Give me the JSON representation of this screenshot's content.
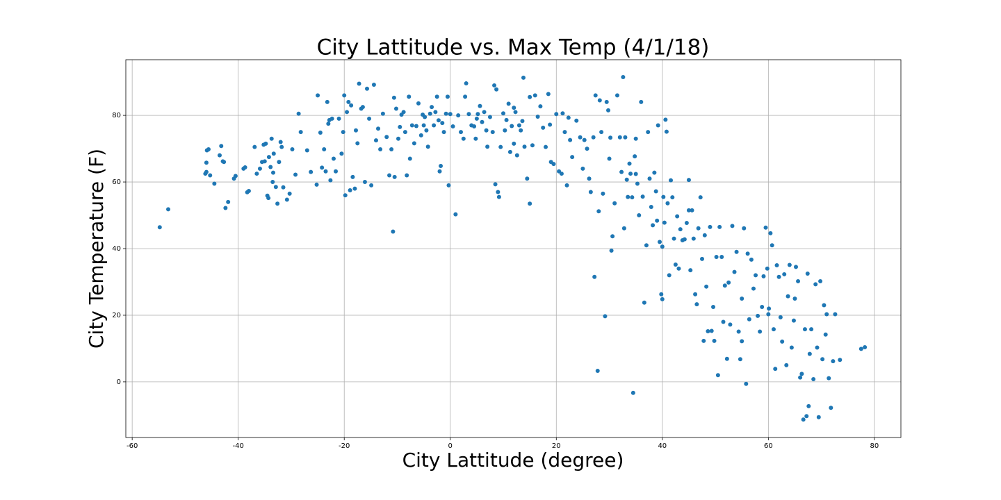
{
  "chart_data": {
    "type": "scatter",
    "title": "City Lattitude vs. Max Temp (4/1/18)",
    "xlabel": "City Lattitude (degree)",
    "ylabel": "City Temperature (F)",
    "color": "#1f77b4",
    "grid": true,
    "xlim": [
      -61.2,
      85
    ],
    "ylim": [
      -16.7,
      96.7
    ],
    "xticks": [
      -60,
      -40,
      -20,
      0,
      20,
      40,
      60,
      80
    ],
    "yticks": [
      0,
      20,
      40,
      60,
      80
    ],
    "x": [
      -54.8,
      -53.2,
      -46.2,
      -46,
      -46,
      -45.9,
      -45.6,
      -45.3,
      -44.5,
      -43.5,
      -43.2,
      -42.9,
      -42.7,
      -42.4,
      -41.9,
      -40.8,
      -40.5,
      -39,
      -38.7,
      -38.3,
      -38,
      -36.9,
      -36.5,
      -35.9,
      -35.5,
      -35.2,
      -35,
      -34.8,
      -34.5,
      -34.3,
      -34.2,
      -33.9,
      -33.7,
      -33.5,
      -33.4,
      -33.3,
      -32.9,
      -32.6,
      -32.3,
      -32,
      -31.8,
      -31.5,
      -30.8,
      -30.3,
      -29.8,
      -29.2,
      -28.6,
      -28.2,
      -27,
      -26.3,
      -25.2,
      -25,
      -24.5,
      -24.2,
      -23.8,
      -23.5,
      -23.2,
      -23,
      -22.8,
      -22.6,
      -22.3,
      -22,
      -21.6,
      -21,
      -20.5,
      -20.2,
      -20,
      -19.8,
      -19.5,
      -19.2,
      -18.9,
      -18.7,
      -18.4,
      -18,
      -17.8,
      -17.5,
      -17.2,
      -16.8,
      -16.5,
      -16.1,
      -15.7,
      -15.3,
      -14.9,
      -14.4,
      -14,
      -13.6,
      -13.2,
      -12.7,
      -11.5,
      -11.1,
      -10.8,
      -10.6,
      -10.5,
      -10.2,
      -9.8,
      -9.5,
      -9.2,
      -8.8,
      -8.5,
      -8.2,
      -7.8,
      -7.6,
      -7.2,
      -6.8,
      -6.4,
      -6,
      -5.5,
      -5.2,
      -4.8,
      -4.5,
      -4.2,
      -3.8,
      -3.5,
      -3.1,
      -2.8,
      -2.5,
      -2.2,
      -2,
      -1.8,
      -1.5,
      -1.2,
      -0.8,
      -0.5,
      -0.3,
      0,
      0.5,
      1,
      1.5,
      2,
      2.5,
      2.8,
      3,
      3.5,
      4,
      4.5,
      4.8,
      5.2,
      5.6,
      6,
      6.4,
      6.8,
      7,
      7.5,
      8,
      8.3,
      8.5,
      8.7,
      9,
      9.2,
      9.5,
      10,
      10.3,
      10.6,
      11,
      11.3,
      11.6,
      12,
      12.3,
      12.6,
      13,
      13.3,
      13.6,
      13.8,
      14,
      14.5,
      15,
      15.5,
      16,
      16.5,
      17,
      17.5,
      18,
      18.5,
      18.8,
      19,
      19.5,
      20,
      20.5,
      21,
      21.2,
      21.6,
      22,
      22.3,
      22.6,
      23,
      23.8,
      24.5,
      25.3,
      25.8,
      26.2,
      26.5,
      27,
      27.2,
      27.4,
      27.8,
      28,
      28.2,
      28.5,
      28.8,
      29.2,
      29.5,
      29.8,
      30.2,
      30.4,
      30.6,
      31,
      31.5,
      32,
      32.3,
      32.6,
      32.8,
      33,
      33.3,
      33.5,
      33.8,
      34,
      34.3,
      34.5,
      34.8,
      35,
      35.3,
      35.6,
      36,
      36.3,
      36.6,
      37,
      37.3,
      37.6,
      37.9,
      38.2,
      38.5,
      38.8,
      39,
      39.2,
      39.5,
      39.8,
      40,
      40.2,
      40.4,
      40.6,
      40.8,
      41,
      41.3,
      41.6,
      41.9,
      42.2,
      42.5,
      42.8,
      43.1,
      43.4,
      43.8,
      44.2,
      44.6,
      45,
      45.3,
      45.6,
      45.9,
      46.2,
      46.5,
      46.8,
      47.2,
      47.5,
      47.8,
      48,
      48.3,
      48.6,
      49,
      49.3,
      49.6,
      49.8,
      50.2,
      50.5,
      50.8,
      51.2,
      51.5,
      51.8,
      52.2,
      52.5,
      52.8,
      53.2,
      53.6,
      54,
      54.4,
      54.7,
      55,
      55.4,
      55.8,
      56.1,
      56.4,
      56.8,
      57.2,
      57.6,
      58,
      58.4,
      58.8,
      59.1,
      59.5,
      59.8,
      60.1,
      60.4,
      60.7,
      61,
      61.3,
      61.6,
      62,
      62.3,
      62.6,
      63,
      63.4,
      63.7,
      64,
      64.4,
      64.8,
      65.2,
      65.6,
      66,
      66.3,
      66.6,
      66.9,
      67.2,
      67.4,
      67.6,
      67.8,
      68.1,
      68.5,
      68.9,
      69.2,
      69.5,
      69.8,
      70.2,
      70.5,
      70.8,
      71,
      71.4,
      71.8,
      72.2,
      72.6,
      73.5,
      77.5,
      78.2,
      12,
      -12,
      5,
      -5,
      15,
      25,
      30,
      35,
      40,
      45,
      55,
      60,
      65
    ],
    "values": [
      46.4,
      51.8,
      62.5,
      63,
      65.8,
      69.5,
      69.8,
      62,
      59.5,
      68,
      70.8,
      66.2,
      66,
      52.2,
      54,
      61,
      61.8,
      64,
      64.4,
      56.9,
      57.3,
      70.5,
      62.5,
      64,
      66,
      71.2,
      66.2,
      71.5,
      55.9,
      55.2,
      67.5,
      64.5,
      73,
      60,
      62.8,
      68.5,
      58.5,
      53.5,
      66,
      72,
      70.5,
      58.4,
      54.7,
      56.5,
      69.8,
      62.2,
      80.5,
      75,
      69.5,
      63,
      59.2,
      86,
      74.8,
      64.3,
      69.8,
      63.2,
      84,
      77.5,
      78.6,
      60.5,
      79,
      67,
      63.2,
      79,
      68.5,
      75,
      86,
      56,
      81,
      84,
      57.5,
      83,
      61.5,
      58,
      75.5,
      71.6,
      89.5,
      82,
      82.5,
      60,
      88,
      79,
      59,
      89.2,
      72.5,
      76,
      69.8,
      80.5,
      62,
      69.8,
      45.1,
      85.3,
      61.5,
      82,
      73,
      76.5,
      80.2,
      81,
      75,
      62,
      85.6,
      67,
      77,
      71.6,
      76.8,
      83.6,
      74,
      80.2,
      79.5,
      75.5,
      70.6,
      80.5,
      82.5,
      77,
      81,
      85.6,
      78.5,
      63.2,
      64.8,
      77.7,
      75,
      80.5,
      85.6,
      59,
      80.4,
      76.7,
      50.3,
      80,
      75,
      73,
      85.6,
      89.6,
      80.4,
      77,
      76.7,
      73,
      80.4,
      82.8,
      78,
      81,
      75.5,
      70.6,
      79.5,
      75,
      89,
      59.3,
      87.8,
      57,
      55.5,
      70.5,
      80.6,
      75.5,
      78.6,
      83.5,
      69,
      76.8,
      82.3,
      81,
      68,
      77,
      75.5,
      78.3,
      91.3,
      70.6,
      61,
      53.5,
      71,
      86,
      79.6,
      82.7,
      76.3,
      70.5,
      86.4,
      77.2,
      66,
      65.4,
      80.4,
      63.2,
      62.5,
      80.6,
      75,
      59,
      79.3,
      72.6,
      67.5,
      78.4,
      73.4,
      72.6,
      70,
      61,
      57,
      73.4,
      31.5,
      86,
      3.3,
      51.2,
      84.5,
      75,
      56.5,
      19.7,
      84,
      81.5,
      73.3,
      39.4,
      43.7,
      53.6,
      86,
      73.4,
      63,
      91.5,
      46.1,
      73.4,
      60.7,
      55.5,
      65.5,
      62.5,
      55.4,
      -3.3,
      67.7,
      62.4,
      59.5,
      50,
      84,
      55.6,
      23.8,
      41,
      75,
      61,
      52.5,
      47,
      62.8,
      57.2,
      48.4,
      77,
      42,
      26.3,
      24.8,
      55.5,
      47.8,
      78.7,
      75.1,
      53.6,
      32,
      60.5,
      55.4,
      43,
      35.2,
      49.7,
      34,
      45.8,
      42.5,
      42.8,
      47.7,
      60.6,
      33.5,
      51.5,
      43,
      26.3,
      23.3,
      46.1,
      55.4,
      36.9,
      12.3,
      44,
      28.6,
      15.2,
      46.5,
      15.3,
      22.5,
      12.3,
      37.5,
      2,
      46.5,
      37.5,
      18,
      28.9,
      6.9,
      29.8,
      17.2,
      46.8,
      33,
      39,
      15.1,
      6.8,
      12.2,
      46.1,
      -0.6,
      38.5,
      18.8,
      36.7,
      28,
      32,
      19.8,
      15.1,
      22.5,
      31.7,
      46.3,
      34,
      22,
      44.6,
      41,
      15.8,
      3.9,
      35,
      31.5,
      19.4,
      12.1,
      32.3,
      5,
      25.7,
      35.1,
      10.3,
      18.4,
      34.5,
      30.2,
      1.3,
      2.4,
      -11.3,
      15.8,
      -10.3,
      32.5,
      -7.3,
      8.4,
      15.8,
      0.8,
      29.3,
      10.3,
      -10.6,
      30.2,
      6.8,
      23,
      14.2,
      20.3,
      1.1,
      -7.8,
      6.2,
      20.3,
      6.6,
      9.9,
      10.4,
      71.5,
      73.5,
      79,
      77,
      85.5,
      64,
      67,
      73,
      40.6,
      51.5,
      25,
      20.3,
      25
    ]
  }
}
